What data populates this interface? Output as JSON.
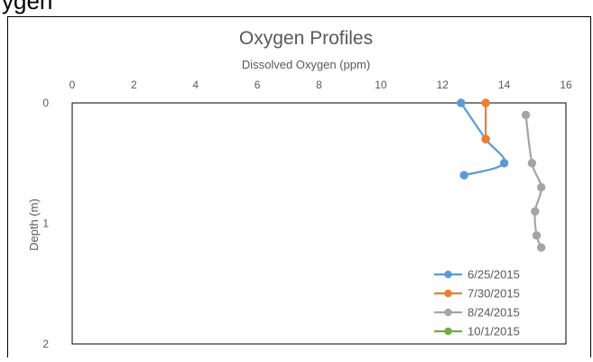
{
  "page_fragment_text": "ygen",
  "chart_data": {
    "type": "scatter",
    "title": "Oxygen Profiles",
    "xlabel": "Dissolved Oxygen (ppm)",
    "ylabel": "Depth (m)",
    "x_axis_position": "top",
    "y_axis_inverted": true,
    "xlim": [
      0,
      16
    ],
    "ylim": [
      0,
      2
    ],
    "x_ticks": [
      "0",
      "2",
      "4",
      "6",
      "8",
      "10",
      "12",
      "14",
      "16"
    ],
    "y_ticks": [
      "0",
      "1",
      "2"
    ],
    "grid": false,
    "smoothed_lines": true,
    "legend_position": "bottom-right",
    "series": [
      {
        "name": "6/25/2015",
        "color": "#5B9BD5",
        "points": [
          [
            12.6,
            0.0
          ],
          [
            13.4,
            0.3
          ],
          [
            14.0,
            0.5
          ],
          [
            12.7,
            0.6
          ]
        ]
      },
      {
        "name": "7/30/2015",
        "color": "#ED7D31",
        "points": [
          [
            13.4,
            0.0
          ],
          [
            13.4,
            0.3
          ]
        ]
      },
      {
        "name": "8/24/2015",
        "color": "#A5A5A5",
        "points": [
          [
            14.7,
            0.1
          ],
          [
            14.9,
            0.5
          ],
          [
            15.2,
            0.7
          ],
          [
            15.0,
            0.9
          ],
          [
            15.05,
            1.1
          ],
          [
            15.2,
            1.2
          ]
        ]
      },
      {
        "name": "10/1/2015",
        "color": "#70AD47",
        "points": []
      }
    ]
  }
}
